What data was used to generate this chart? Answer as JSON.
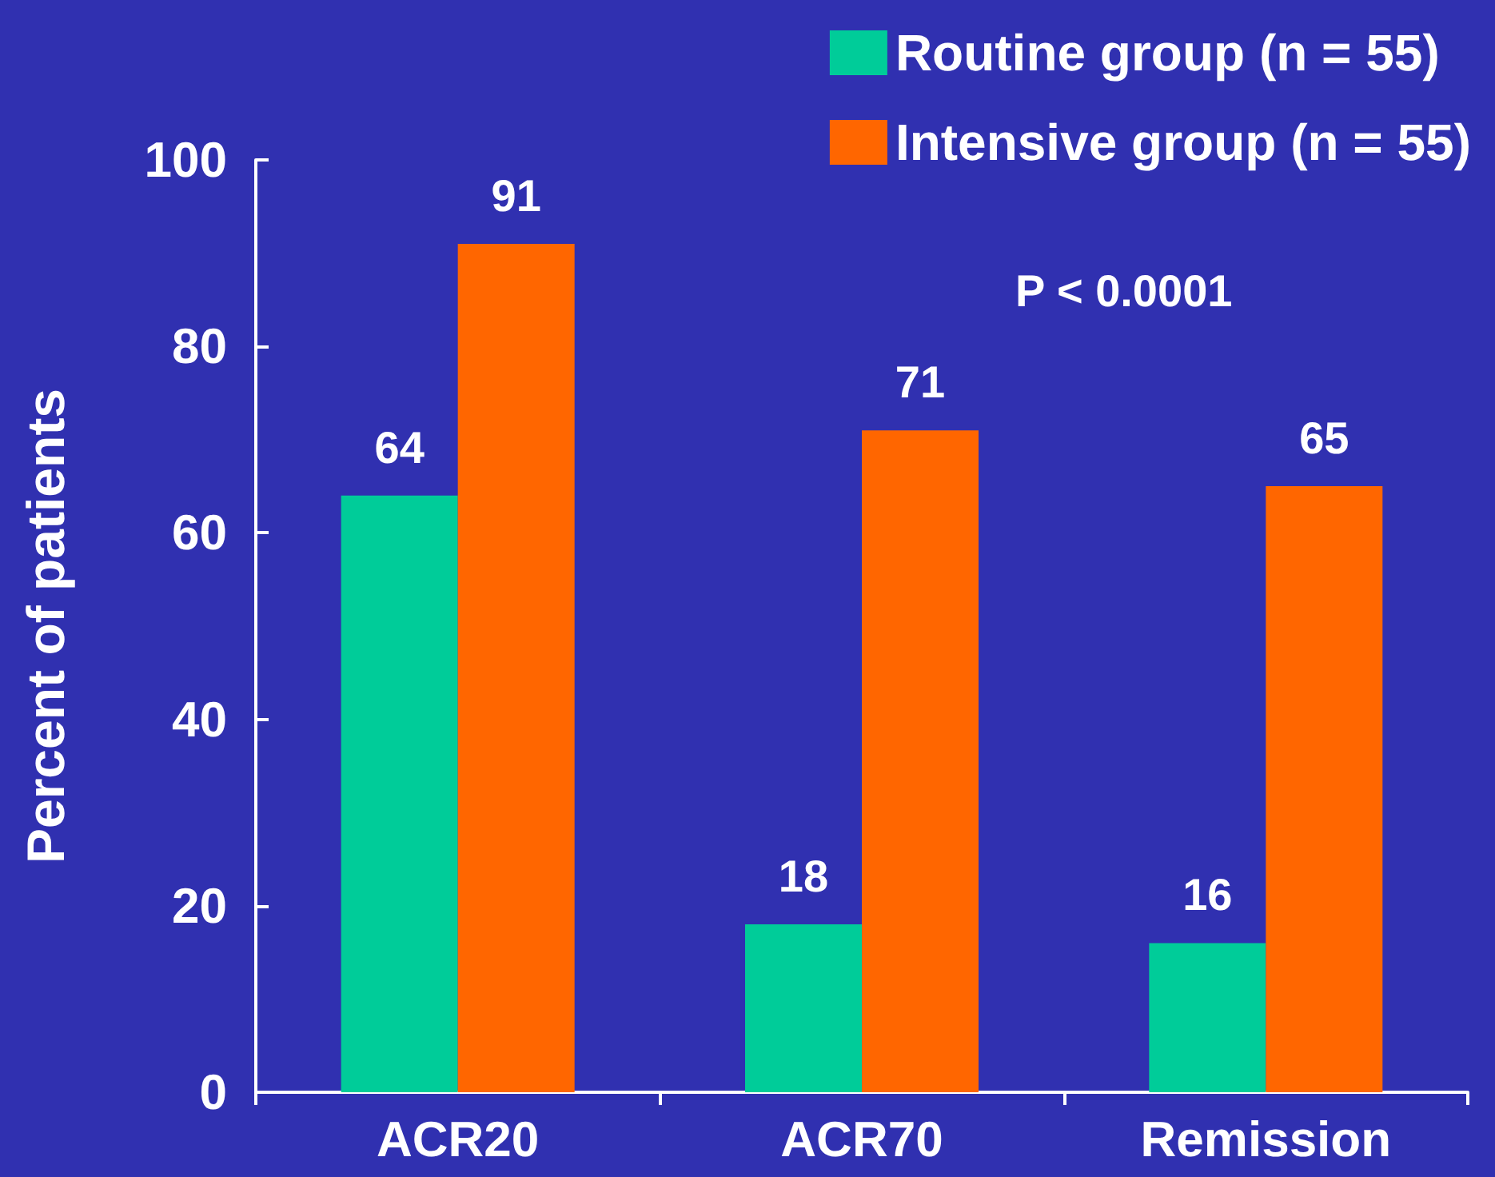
{
  "chart_data": {
    "type": "bar",
    "ylabel": "Percent of patients",
    "categories": [
      "ACR20",
      "ACR70",
      "Remission"
    ],
    "series": [
      {
        "name": "Routine group (n = 55)",
        "color": "#00cc99",
        "values": [
          64,
          18,
          16
        ]
      },
      {
        "name": "Intensive group (n = 55)",
        "color": "#ff6600",
        "values": [
          91,
          71,
          65
        ]
      }
    ],
    "ylim": [
      0,
      100
    ],
    "yticks": [
      0,
      20,
      40,
      60,
      80,
      100
    ],
    "data_labels": true,
    "legend": "top right",
    "grid": false,
    "annotations": [
      "P < 0.0001"
    ]
  }
}
